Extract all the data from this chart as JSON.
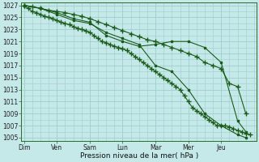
{
  "background_color": "#c5e8e8",
  "grid_color": "#9ecece",
  "line_color": "#1a5c1a",
  "title": "Pression niveau de la mer( hPa )",
  "x_labels": [
    "Dim",
    "Ven",
    "Sam",
    "Lun",
    "Mar",
    "Mer",
    "Jeu"
  ],
  "x_tick_positions": [
    0,
    24,
    48,
    72,
    96,
    120,
    144
  ],
  "xlim": [
    -2,
    170
  ],
  "ylim": [
    1004.5,
    1027.5
  ],
  "yticks": [
    1005,
    1007,
    1009,
    1011,
    1013,
    1015,
    1017,
    1019,
    1021,
    1023,
    1025,
    1027
  ],
  "series": [
    {
      "x": [
        0,
        3,
        6,
        9,
        12,
        15,
        18,
        21,
        24,
        27,
        30,
        33,
        36,
        39,
        42,
        45,
        48,
        51,
        54,
        57,
        60,
        63,
        66,
        69,
        72,
        75,
        78,
        81,
        84,
        87,
        90,
        93,
        96,
        99,
        102,
        105,
        108,
        111,
        114,
        117,
        120,
        123,
        126,
        129,
        132,
        135,
        138,
        141,
        144,
        147,
        150,
        153,
        156,
        159,
        162,
        165
      ],
      "y": [
        1027,
        1026.5,
        1026,
        1025.8,
        1025.5,
        1025.2,
        1025,
        1024.8,
        1024.5,
        1024.2,
        1024,
        1023.8,
        1023.5,
        1023.2,
        1023,
        1022.8,
        1022.5,
        1022,
        1021.5,
        1021,
        1020.8,
        1020.5,
        1020.2,
        1020.0,
        1019.8,
        1019.5,
        1019,
        1018.5,
        1018,
        1017.5,
        1017,
        1016.5,
        1016,
        1015.5,
        1015,
        1014.5,
        1014,
        1013.5,
        1013,
        1012,
        1011,
        1010,
        1009.5,
        1009,
        1008.5,
        1008,
        1007.5,
        1007,
        1007,
        1007,
        1006.8,
        1006.5,
        1006.2,
        1006,
        1005.7,
        1005.5
      ]
    },
    {
      "x": [
        0,
        6,
        12,
        18,
        24,
        30,
        36,
        42,
        48,
        54,
        60,
        66,
        72,
        78,
        84,
        90,
        96,
        102,
        108,
        114,
        120,
        126,
        132,
        138,
        144,
        150,
        156,
        162
      ],
      "y": [
        1027,
        1026.8,
        1026.5,
        1026.2,
        1026,
        1025.8,
        1025.5,
        1025.2,
        1024.8,
        1024.3,
        1023.8,
        1023.3,
        1022.8,
        1022.3,
        1021.8,
        1021.3,
        1021,
        1020.5,
        1020,
        1019.5,
        1019,
        1018.5,
        1017.5,
        1017,
        1016.5,
        1014,
        1013.5,
        1009
      ]
    },
    {
      "x": [
        0,
        12,
        24,
        36,
        48,
        60,
        72,
        84,
        96,
        108,
        120,
        132,
        144,
        156,
        162
      ],
      "y": [
        1027,
        1026.5,
        1025.8,
        1024.8,
        1024.2,
        1022,
        1021,
        1020.2,
        1020.5,
        1021,
        1021,
        1020,
        1017.5,
        1007.8,
        1006
      ]
    },
    {
      "x": [
        0,
        12,
        24,
        36,
        48,
        60,
        72,
        84,
        96,
        108,
        120,
        132,
        144,
        156,
        162
      ],
      "y": [
        1027,
        1026.5,
        1025.5,
        1024.5,
        1024,
        1022.5,
        1021.5,
        1020.5,
        1017,
        1016,
        1013,
        1009,
        1007,
        1005.5,
        1005
      ]
    }
  ]
}
